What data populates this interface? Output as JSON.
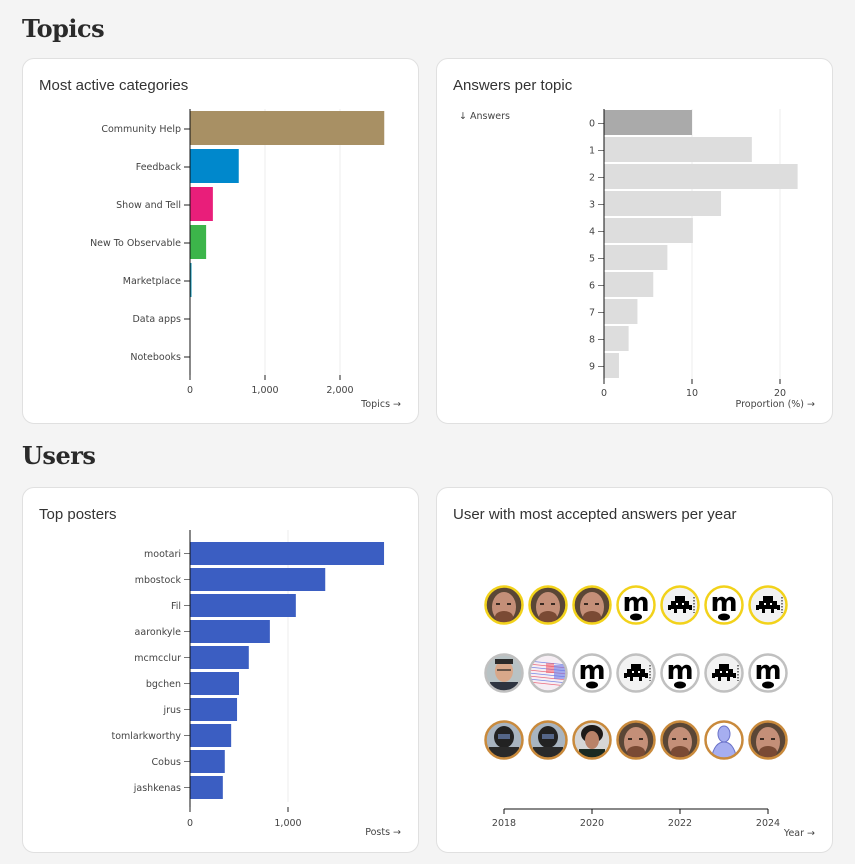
{
  "sections": {
    "topics": "Topics",
    "users": "Users"
  },
  "cards": {
    "categories": {
      "title": "Most active categories",
      "x_label": "Topics →",
      "ticks": [
        "0",
        "1,000",
        "2,000"
      ]
    },
    "answers": {
      "title": "Answers per topic",
      "y_label": "↓ Answers",
      "x_label": "Proportion (%) →",
      "ticks": [
        "0",
        "10",
        "20"
      ]
    },
    "posters": {
      "title": "Top posters",
      "x_label": "Posts →",
      "ticks": [
        "0",
        "1,000"
      ]
    },
    "accepted": {
      "title": "User with most accepted answers per year",
      "x_label": "Year →",
      "ticks": [
        "2018",
        "2020",
        "2022",
        "2024"
      ]
    }
  },
  "chart_data": [
    {
      "type": "bar",
      "orientation": "horizontal",
      "title": "Most active categories",
      "xlabel": "Topics →",
      "ylabel": "",
      "xlim": [
        0,
        2600
      ],
      "categories": [
        "Community Help",
        "Feedback",
        "Show and Tell",
        "New To Observable",
        "Marketplace",
        "Data apps",
        "Notebooks"
      ],
      "values": [
        2590,
        650,
        305,
        215,
        15,
        0,
        0
      ],
      "colors": [
        "#a89064",
        "#0088cc",
        "#e91e7a",
        "#3cb54a",
        "#0a8fb0",
        "#888888",
        "#888888"
      ],
      "grid": true
    },
    {
      "type": "bar",
      "orientation": "horizontal",
      "title": "Answers per topic",
      "xlabel": "Proportion (%) →",
      "ylabel": "↓ Answers",
      "xlim": [
        0,
        22
      ],
      "categories": [
        "0",
        "1",
        "2",
        "3",
        "4",
        "5",
        "6",
        "7",
        "8",
        "9"
      ],
      "values": [
        10.0,
        16.8,
        22.0,
        13.3,
        10.1,
        7.2,
        5.6,
        3.8,
        2.8,
        1.7
      ],
      "highlight": "0",
      "grid": true
    },
    {
      "type": "bar",
      "orientation": "horizontal",
      "title": "Top posters",
      "xlabel": "Posts →",
      "ylabel": "",
      "xlim": [
        0,
        2000
      ],
      "categories": [
        "mootari",
        "mbostock",
        "Fil",
        "aaronkyle",
        "mcmcclur",
        "bgchen",
        "jrus",
        "tomlarkworthy",
        "Cobus",
        "jashkenas"
      ],
      "values": [
        1980,
        1380,
        1080,
        815,
        600,
        500,
        480,
        420,
        355,
        335
      ],
      "color": "#3b5ec2",
      "grid": true
    },
    {
      "type": "scatter",
      "title": "User with most accepted answers per year",
      "xlabel": "Year →",
      "x": [
        2018,
        2019,
        2020,
        2021,
        2022,
        2023,
        2024
      ],
      "rows": [
        {
          "rank": "gold",
          "ring": "#f2d21b",
          "avatars": [
            "photo-bearded",
            "photo-bearded",
            "photo-bearded",
            "m-logo",
            "invader",
            "m-logo",
            "invader"
          ]
        },
        {
          "rank": "silver",
          "ring": "#c0c0c0",
          "avatars": [
            "photo-glasses",
            "pattern-red-blue",
            "m-logo",
            "invader",
            "m-logo",
            "invader",
            "m-logo"
          ]
        },
        {
          "rank": "bronze",
          "ring": "#c98a3c",
          "avatars": [
            "photo-helmet",
            "photo-helmet",
            "photo-curly",
            "photo-bearded",
            "photo-bearded",
            "silhouette",
            "photo-bearded"
          ]
        }
      ]
    }
  ]
}
